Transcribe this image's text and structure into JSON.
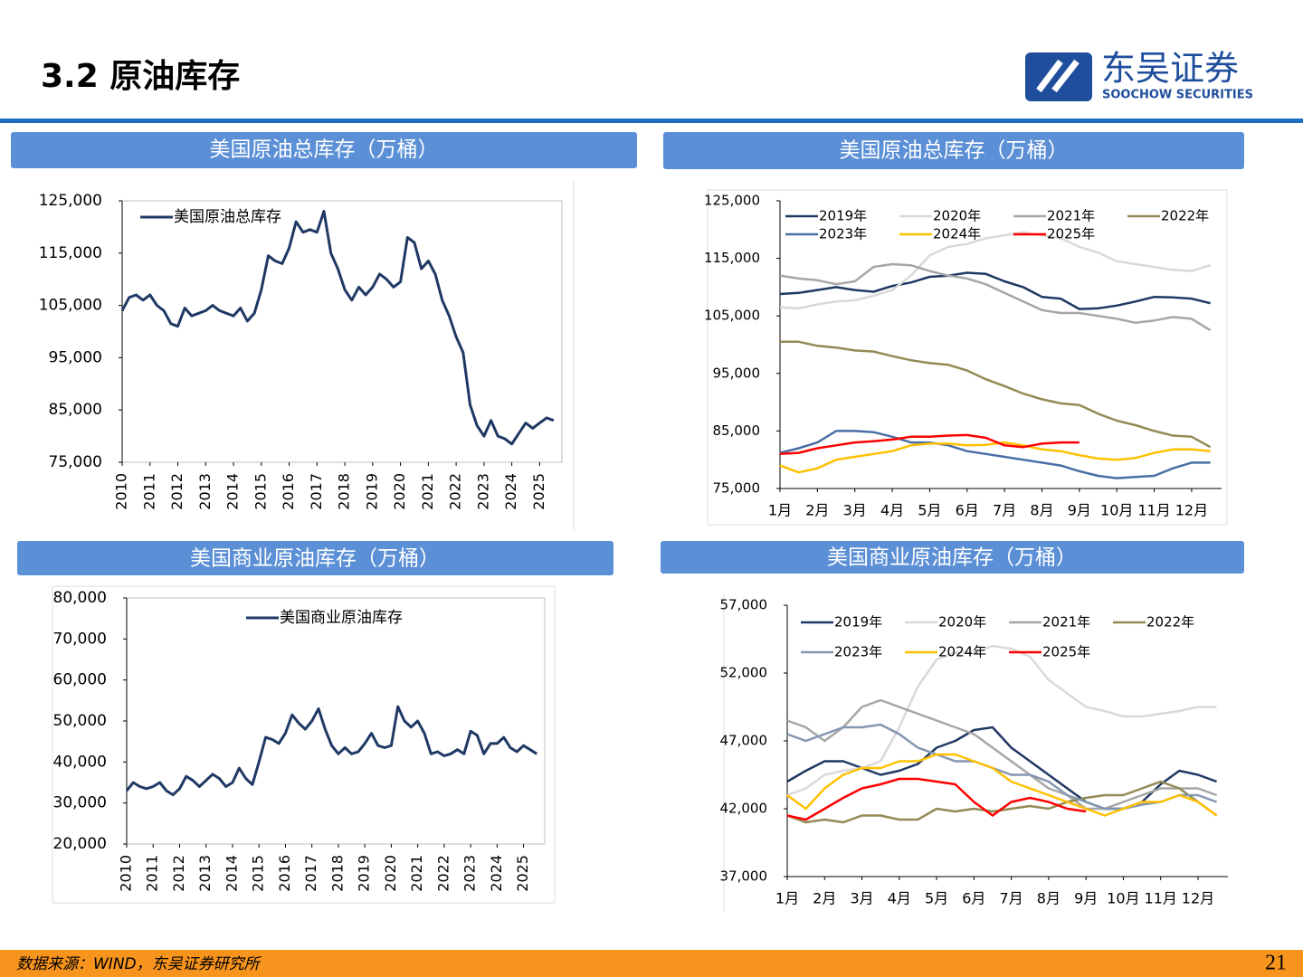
{
  "header": {
    "title": "3.2 原油库存",
    "logo_cn": "东吴证券",
    "logo_en": "SOOCHOW SECURITIES"
  },
  "footer": {
    "source": "数据来源：WIND，东吴证券研究所",
    "page": "21"
  },
  "chart_data": [
    {
      "type": "line",
      "title": "美国原油总库存（万桶）",
      "legend": "upper left",
      "grid": false,
      "x": [
        2010,
        2010.25,
        2010.5,
        2010.75,
        2011,
        2011.25,
        2011.5,
        2011.75,
        2012,
        2012.25,
        2012.5,
        2012.75,
        2013,
        2013.25,
        2013.5,
        2013.75,
        2014,
        2014.25,
        2014.5,
        2014.75,
        2015,
        2015.25,
        2015.5,
        2015.75,
        2016,
        2016.25,
        2016.5,
        2016.75,
        2017,
        2017.25,
        2017.5,
        2017.75,
        2018,
        2018.25,
        2018.5,
        2018.75,
        2019,
        2019.25,
        2019.5,
        2019.75,
        2020,
        2020.25,
        2020.5,
        2020.75,
        2021,
        2021.25,
        2021.5,
        2021.75,
        2022,
        2022.25,
        2022.5,
        2022.75,
        2023,
        2023.25,
        2023.5,
        2023.75,
        2024,
        2024.25,
        2024.5,
        2024.75,
        2025,
        2025.25,
        2025.5
      ],
      "series": [
        {
          "name": "美国原油总库存",
          "color": "#1f3864",
          "values": [
            104000,
            106500,
            107000,
            106000,
            107000,
            105000,
            104000,
            101500,
            101000,
            104500,
            103000,
            103500,
            104000,
            105000,
            104000,
            103500,
            103000,
            104500,
            102000,
            103500,
            108000,
            114500,
            113500,
            113000,
            116000,
            121000,
            119000,
            119500,
            119000,
            123000,
            115000,
            112000,
            108000,
            106000,
            108500,
            107000,
            108500,
            111000,
            110000,
            108500,
            109500,
            118000,
            117000,
            112000,
            113500,
            111000,
            106000,
            103000,
            99000,
            96000,
            86000,
            82000,
            80000,
            83000,
            80000,
            79500,
            78500,
            80500,
            82500,
            81500,
            82500,
            83500,
            83000
          ]
        }
      ],
      "xlim": [
        2010,
        2025.8
      ],
      "xticks": [
        2010,
        2011,
        2012,
        2013,
        2014,
        2015,
        2016,
        2017,
        2018,
        2019,
        2020,
        2021,
        2022,
        2023,
        2024,
        2025
      ],
      "ylim": [
        75000,
        125000
      ],
      "yticks": [
        {
          "value": 75000,
          "label": "75,000"
        },
        {
          "value": 85000,
          "label": "85,000"
        },
        {
          "value": 95000,
          "label": "95,000"
        },
        {
          "value": 105000,
          "label": "105,000"
        },
        {
          "value": 115000,
          "label": "115,000"
        },
        {
          "value": 125000,
          "label": "125,000"
        }
      ]
    },
    {
      "type": "line",
      "title": "美国原油总库存（万桶）",
      "legend": "top",
      "grid": false,
      "x": [
        1,
        1.5,
        2,
        2.5,
        3,
        3.5,
        4,
        4.5,
        5,
        5.5,
        6,
        6.5,
        7,
        7.5,
        8,
        8.5,
        9,
        9.5,
        10,
        10.5,
        11,
        11.5,
        12,
        12.5
      ],
      "series": [
        {
          "name": "2019年",
          "color": "#1f3864",
          "values": [
            108800,
            109000,
            109500,
            110000,
            109500,
            109200,
            110200,
            110800,
            111800,
            112000,
            112500,
            112300,
            111000,
            110000,
            108300,
            108000,
            106200,
            106300,
            106800,
            107500,
            108300,
            108200,
            108000,
            107200
          ]
        },
        {
          "name": "2020年",
          "color": "#d9d9d9",
          "values": [
            106500,
            106300,
            107000,
            107500,
            107700,
            108500,
            109500,
            112000,
            115500,
            117000,
            117500,
            118500,
            119000,
            119500,
            119000,
            118500,
            117000,
            116000,
            114500,
            114000,
            113500,
            113000,
            112800,
            113800
          ]
        },
        {
          "name": "2021年",
          "color": "#a6a6a6",
          "values": [
            112000,
            111500,
            111200,
            110500,
            111000,
            113500,
            114000,
            113800,
            112800,
            112000,
            111500,
            110500,
            109000,
            107500,
            106000,
            105500,
            105500,
            105000,
            104500,
            103800,
            104200,
            104800,
            104500,
            102500
          ]
        },
        {
          "name": "2022年",
          "color": "#948a54",
          "values": [
            100500,
            100500,
            99800,
            99500,
            99000,
            98800,
            98000,
            97300,
            96800,
            96500,
            95500,
            94000,
            92800,
            91500,
            90500,
            89800,
            89500,
            88000,
            86800,
            86000,
            85000,
            84200,
            84000,
            82200
          ]
        },
        {
          "name": "2023年",
          "color": "#4a6fa5",
          "values": [
            81200,
            82000,
            83000,
            85000,
            85000,
            84800,
            84000,
            83000,
            83000,
            82500,
            81500,
            81000,
            80500,
            80000,
            79500,
            79000,
            78000,
            77200,
            76800,
            77000,
            77200,
            78500,
            79500,
            79500
          ]
        },
        {
          "name": "2024年",
          "color": "#ffc000",
          "values": [
            79000,
            77800,
            78500,
            80000,
            80500,
            81000,
            81500,
            82500,
            82800,
            82800,
            82500,
            82600,
            83000,
            82500,
            81800,
            81500,
            80800,
            80200,
            80000,
            80300,
            81200,
            81800,
            81800,
            81500
          ]
        },
        {
          "name": "2025年",
          "color": "#ff0000",
          "values": [
            81000,
            81200,
            82000,
            82500,
            83000,
            83200,
            83500,
            84000,
            84000,
            84200,
            84300,
            83800,
            82500,
            82200,
            82800,
            83000,
            83000,
            null,
            null,
            null,
            null,
            null,
            null,
            null
          ]
        }
      ],
      "xlim": [
        1,
        12.8
      ],
      "xticks": [
        {
          "value": 1,
          "label": "1月"
        },
        {
          "value": 2,
          "label": "2月"
        },
        {
          "value": 3,
          "label": "3月"
        },
        {
          "value": 4,
          "label": "4月"
        },
        {
          "value": 5,
          "label": "5月"
        },
        {
          "value": 6,
          "label": "6月"
        },
        {
          "value": 7,
          "label": "7月"
        },
        {
          "value": 8,
          "label": "8月"
        },
        {
          "value": 9,
          "label": "9月"
        },
        {
          "value": 10,
          "label": "10月"
        },
        {
          "value": 11,
          "label": "11月"
        },
        {
          "value": 12,
          "label": "12月"
        }
      ],
      "ylim": [
        75000,
        125000
      ],
      "yticks": [
        {
          "value": 75000,
          "label": "75,000"
        },
        {
          "value": 85000,
          "label": "85,000"
        },
        {
          "value": 95000,
          "label": "95,000"
        },
        {
          "value": 105000,
          "label": "105,000"
        },
        {
          "value": 115000,
          "label": "115,000"
        },
        {
          "value": 125000,
          "label": "125,000"
        }
      ]
    },
    {
      "type": "line",
      "title": "美国商业原油库存（万桶）",
      "legend": "upper left",
      "grid": false,
      "x": [
        2010,
        2010.25,
        2010.5,
        2010.75,
        2011,
        2011.25,
        2011.5,
        2011.75,
        2012,
        2012.25,
        2012.5,
        2012.75,
        2013,
        2013.25,
        2013.5,
        2013.75,
        2014,
        2014.25,
        2014.5,
        2014.75,
        2015,
        2015.25,
        2015.5,
        2015.75,
        2016,
        2016.25,
        2016.5,
        2016.75,
        2017,
        2017.25,
        2017.5,
        2017.75,
        2018,
        2018.25,
        2018.5,
        2018.75,
        2019,
        2019.25,
        2019.5,
        2019.75,
        2020,
        2020.25,
        2020.5,
        2020.75,
        2021,
        2021.25,
        2021.5,
        2021.75,
        2022,
        2022.25,
        2022.5,
        2022.75,
        2023,
        2023.25,
        2023.5,
        2023.75,
        2024,
        2024.25,
        2024.5,
        2024.75,
        2025,
        2025.25,
        2025.5
      ],
      "series": [
        {
          "name": "美国商业原油库存",
          "color": "#1f3864",
          "values": [
            33000,
            35000,
            34000,
            33500,
            34000,
            35000,
            33000,
            32000,
            33500,
            36500,
            35500,
            34000,
            35500,
            37000,
            36000,
            34000,
            35000,
            38500,
            36000,
            34500,
            40000,
            46000,
            45500,
            44500,
            47000,
            51500,
            49500,
            48000,
            50000,
            53000,
            48000,
            44000,
            42000,
            43500,
            42000,
            42500,
            44500,
            47000,
            44000,
            43500,
            44000,
            53500,
            50000,
            48500,
            50000,
            47000,
            42000,
            42500,
            41500,
            42000,
            43000,
            42000,
            47500,
            46500,
            42000,
            44500,
            44500,
            46000,
            43500,
            42500,
            44000,
            43000,
            42000
          ]
        }
      ],
      "xlim": [
        2010,
        2025.8
      ],
      "xticks": [
        2010,
        2011,
        2012,
        2013,
        2014,
        2015,
        2016,
        2017,
        2018,
        2019,
        2020,
        2021,
        2022,
        2023,
        2024,
        2025
      ],
      "ylim": [
        20000,
        80000
      ],
      "yticks": [
        {
          "value": 20000,
          "label": "20,000"
        },
        {
          "value": 30000,
          "label": "30,000"
        },
        {
          "value": 40000,
          "label": "40,000"
        },
        {
          "value": 50000,
          "label": "50,000"
        },
        {
          "value": 60000,
          "label": "60,000"
        },
        {
          "value": 70000,
          "label": "70,000"
        },
        {
          "value": 80000,
          "label": "80,000"
        }
      ]
    },
    {
      "type": "line",
      "title": "美国商业原油库存（万桶）",
      "legend": "top",
      "grid": false,
      "x": [
        1,
        1.5,
        2,
        2.5,
        3,
        3.5,
        4,
        4.5,
        5,
        5.5,
        6,
        6.5,
        7,
        7.5,
        8,
        8.5,
        9,
        9.5,
        10,
        10.5,
        11,
        11.5,
        12,
        12.5
      ],
      "series": [
        {
          "name": "2019年",
          "color": "#1f3864",
          "values": [
            44000,
            44800,
            45500,
            45500,
            45000,
            44500,
            44800,
            45300,
            46500,
            47000,
            47800,
            48000,
            46500,
            45500,
            44500,
            43500,
            42500,
            42000,
            42000,
            42500,
            43800,
            44800,
            44500,
            44000
          ]
        },
        {
          "name": "2020年",
          "color": "#d9d9d9",
          "values": [
            43000,
            43500,
            44500,
            44800,
            45000,
            45500,
            48000,
            51000,
            53000,
            53500,
            53500,
            54000,
            53800,
            53200,
            51500,
            50500,
            49500,
            49200,
            48800,
            48800,
            49000,
            49200,
            49500,
            49500
          ]
        },
        {
          "name": "2021年",
          "color": "#a6a6a6",
          "values": [
            48500,
            48000,
            47000,
            48000,
            49500,
            50000,
            49500,
            49000,
            48500,
            48000,
            47500,
            46500,
            45500,
            44500,
            43500,
            43000,
            42000,
            42000,
            42500,
            43000,
            43500,
            43500,
            43500,
            43000
          ]
        },
        {
          "name": "2022年",
          "color": "#948a54",
          "values": [
            41500,
            41000,
            41200,
            41000,
            41500,
            41500,
            41200,
            41200,
            42000,
            41800,
            42000,
            41800,
            42000,
            42200,
            42000,
            42500,
            42800,
            43000,
            43000,
            43500,
            44000,
            43500,
            42500,
            41500
          ]
        },
        {
          "name": "2023年",
          "color": "#8497b0",
          "values": [
            47500,
            47000,
            47500,
            48000,
            48000,
            48200,
            47500,
            46500,
            46000,
            45500,
            45500,
            45000,
            44500,
            44500,
            44000,
            43000,
            42500,
            42000,
            42000,
            42300,
            42500,
            43000,
            43000,
            42500
          ]
        },
        {
          "name": "2024年",
          "color": "#ffc000",
          "values": [
            43000,
            42000,
            43500,
            44500,
            45000,
            45000,
            45500,
            45500,
            46000,
            46000,
            45500,
            45000,
            44000,
            43500,
            43000,
            42500,
            42000,
            41500,
            42000,
            42500,
            42500,
            43000,
            42500,
            41500
          ]
        },
        {
          "name": "2025年",
          "color": "#ff0000",
          "values": [
            41500,
            41200,
            42000,
            42800,
            43500,
            43800,
            44200,
            44200,
            44000,
            43800,
            42500,
            41500,
            42500,
            42800,
            42500,
            42000,
            41800,
            null,
            null,
            null,
            null,
            null,
            null,
            null
          ]
        }
      ],
      "xlim": [
        1,
        12.8
      ],
      "xticks": [
        {
          "value": 1,
          "label": "1月"
        },
        {
          "value": 2,
          "label": "2月"
        },
        {
          "value": 3,
          "label": "3月"
        },
        {
          "value": 4,
          "label": "4月"
        },
        {
          "value": 5,
          "label": "5月"
        },
        {
          "value": 6,
          "label": "6月"
        },
        {
          "value": 7,
          "label": "7月"
        },
        {
          "value": 8,
          "label": "8月"
        },
        {
          "value": 9,
          "label": "9月"
        },
        {
          "value": 10,
          "label": "10月"
        },
        {
          "value": 11,
          "label": "11月"
        },
        {
          "value": 12,
          "label": "12月"
        }
      ],
      "ylim": [
        37000,
        57000
      ],
      "yticks": [
        {
          "value": 37000,
          "label": "37,000"
        },
        {
          "value": 42000,
          "label": "42,000"
        },
        {
          "value": 47000,
          "label": "47,000"
        },
        {
          "value": 52000,
          "label": "52,000"
        },
        {
          "value": 57000,
          "label": "57,000"
        }
      ]
    }
  ]
}
